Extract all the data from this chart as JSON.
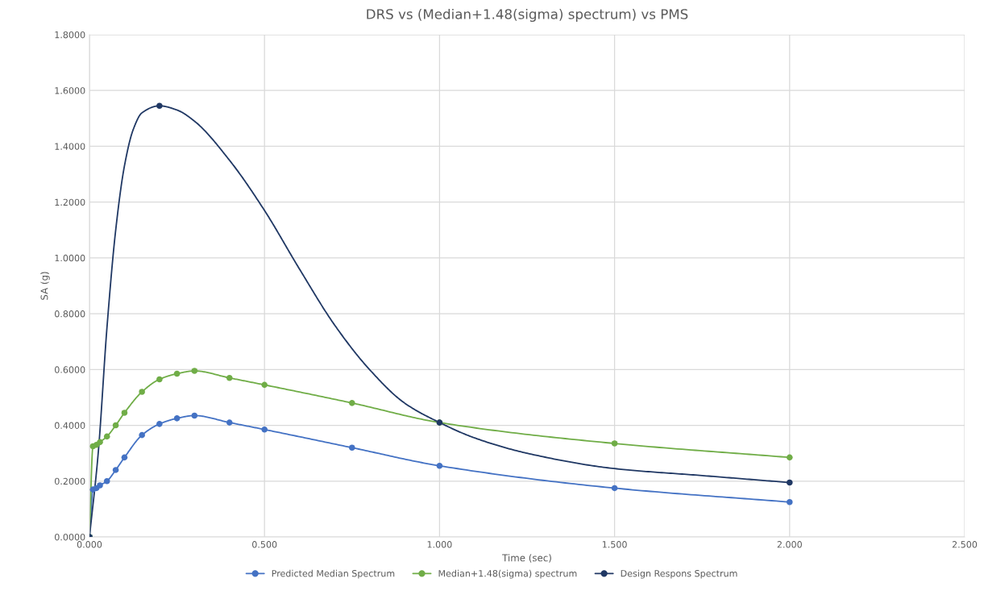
{
  "chart_data": {
    "type": "line",
    "title": "DRS vs (Median+1.48(sigma) spectrum) vs PMS",
    "xlabel": "Time (sec)",
    "ylabel": "SA (g)",
    "xlim": [
      0,
      2.5
    ],
    "xticks": [
      {
        "value": 0,
        "label": "0.000"
      },
      {
        "value": 0.5,
        "label": "0.500"
      },
      {
        "value": 1,
        "label": "1.000"
      },
      {
        "value": 1.5,
        "label": "1.500"
      },
      {
        "value": 2,
        "label": "2.000"
      },
      {
        "value": 2.5,
        "label": "2.500"
      }
    ],
    "ylim": [
      0,
      1.8
    ],
    "yticks": [
      {
        "value": 0,
        "label": "0.0000"
      },
      {
        "value": 0.2,
        "label": "0.2000"
      },
      {
        "value": 0.4,
        "label": "0.4000"
      },
      {
        "value": 0.6,
        "label": "0.6000"
      },
      {
        "value": 0.8,
        "label": "0.8000"
      },
      {
        "value": 1,
        "label": "1.0000"
      },
      {
        "value": 1.2,
        "label": "1.2000"
      },
      {
        "value": 1.4,
        "label": "1.4000"
      },
      {
        "value": 1.6,
        "label": "1.6000"
      },
      {
        "value": 1.8,
        "label": "1.8000"
      }
    ],
    "grid": true,
    "legend": "bottom",
    "marker": "circle",
    "line_style": "solid",
    "series": [
      {
        "name": "Predicted Median Spectrum",
        "color": "#4472c4",
        "x": [
          0,
          0.01,
          0.02,
          0.03,
          0.05,
          0.075,
          0.1,
          0.15,
          0.2,
          0.25,
          0.3,
          0.4,
          0.5,
          0.75,
          1.0,
          1.5,
          2.0
        ],
        "values": [
          0,
          0.17,
          0.175,
          0.185,
          0.2,
          0.24,
          0.285,
          0.365,
          0.405,
          0.425,
          0.435,
          0.41,
          0.385,
          0.32,
          0.255,
          0.175,
          0.125
        ]
      },
      {
        "name": "Median+1.48(sigma) spectrum",
        "color": "#70ad47",
        "x": [
          0,
          0.01,
          0.02,
          0.03,
          0.05,
          0.075,
          0.1,
          0.15,
          0.2,
          0.25,
          0.3,
          0.4,
          0.5,
          0.75,
          1.0,
          1.5,
          2.0
        ],
        "values": [
          0,
          0.325,
          0.33,
          0.34,
          0.36,
          0.4,
          0.445,
          0.52,
          0.565,
          0.585,
          0.595,
          0.57,
          0.545,
          0.48,
          0.41,
          0.335,
          0.285
        ]
      },
      {
        "name": "Design Respons Spectrum",
        "color": "#203864",
        "marker": "none",
        "x": [
          0,
          0.025,
          0.05,
          0.075,
          0.1,
          0.125,
          0.15,
          0.2,
          0.25,
          0.3,
          0.4,
          0.5,
          0.6,
          0.7,
          0.8,
          0.9,
          1.0,
          1.1,
          1.25,
          1.5,
          1.75,
          2.0
        ],
        "values": [
          0,
          0.3,
          0.75,
          1.1,
          1.33,
          1.46,
          1.52,
          1.545,
          1.53,
          1.49,
          1.35,
          1.17,
          0.96,
          0.76,
          0.6,
          0.48,
          0.41,
          0.355,
          0.3,
          0.245,
          0.22,
          0.195
        ]
      },
      {
        "type": "scatter",
        "color": "#203864",
        "x": [
          0,
          0.2,
          1.0,
          2.0
        ],
        "values": [
          0,
          1.545,
          0.41,
          0.195
        ]
      }
    ]
  }
}
